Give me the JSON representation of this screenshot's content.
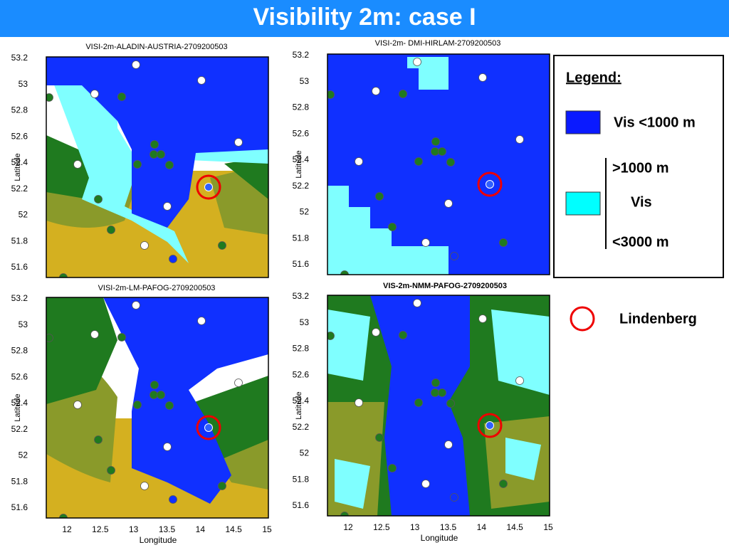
{
  "title": "Visibility 2m: case I",
  "panels": [
    {
      "title": "VISI-2m-ALADIN-AUSTRIA-2709200503",
      "y_label": "Latitude",
      "yticks": [
        "53.2",
        "53",
        "52.8",
        "52.6",
        "52.4",
        "52.2",
        "52",
        "51.8",
        "51.6"
      ]
    },
    {
      "title": "VISI-2m- DMI-HIRLAM-2709200503",
      "y_label": "Latitude",
      "yticks": [
        "53.2",
        "53",
        "52.8",
        "52.6",
        "52.4",
        "52.2",
        "52",
        "51.8",
        "51.6"
      ]
    },
    {
      "title": "VISI-2m-LM-PAFOG-2709200503",
      "y_label": "Latitude",
      "yticks": [
        "53.2",
        "53",
        "52.8",
        "52.6",
        "52.4",
        "52.2",
        "52",
        "51.8",
        "51.6"
      ],
      "x_label": "Longitude",
      "xticks": [
        "12",
        "12.5",
        "13",
        "13.5",
        "14",
        "14.5",
        "15"
      ]
    },
    {
      "title": "VIS-2m-NMM-PAFOG-2709200503",
      "y_label": "Latitude",
      "yticks": [
        "53.2",
        "53",
        "52.8",
        "52.6",
        "52.4",
        "52.2",
        "52",
        "51.8",
        "51.6"
      ],
      "x_label": "Longitude",
      "xticks": [
        "12",
        "12.5",
        "13",
        "13.5",
        "14",
        "14.5",
        "15"
      ]
    }
  ],
  "legend": {
    "title": "Legend:",
    "blue": "Vis <1000 m",
    "cyan_top": ">1000 m",
    "cyan_mid": "Vis",
    "cyan_bottom": "<3000 m",
    "site": "Lindenberg"
  }
}
